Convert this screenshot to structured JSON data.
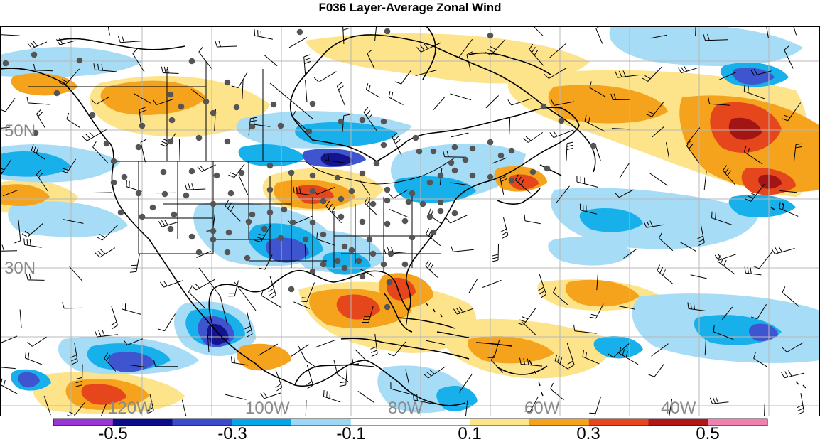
{
  "title": "F036 Layer-Average Zonal Wind",
  "latitude_labels": [
    "50N",
    "30N"
  ],
  "longitude_labels": [
    "120W",
    "100W",
    "80W",
    "60W",
    "40W"
  ],
  "colorbar": {
    "tick_labels": [
      "-0.5",
      "-0.3",
      "-0.1",
      "0.1",
      "0.3",
      "0.5"
    ],
    "colors": [
      "#9b34d4",
      "#0b0b8c",
      "#3c4ad0",
      "#00a8e8",
      "#9cd8f6",
      "#ffffff",
      "#ffffff",
      "#fbe68a",
      "#f6a21a",
      "#e8461e",
      "#b01818",
      "#f080b0"
    ]
  },
  "legend_palette": {
    "white": "#ffffff",
    "lightblue": "#a6dcf6",
    "blue": "#18b0ea",
    "mid": "#3f55cf",
    "dark": "#14148e",
    "lightorange": "#fde48a",
    "orange": "#f5a21c",
    "red": "#e5461c",
    "darkred": "#a31515"
  },
  "map_features": [
    "coastlines",
    "political-boundaries",
    "lat-lon-grid",
    "wind-barbs",
    "observation-stations"
  ]
}
